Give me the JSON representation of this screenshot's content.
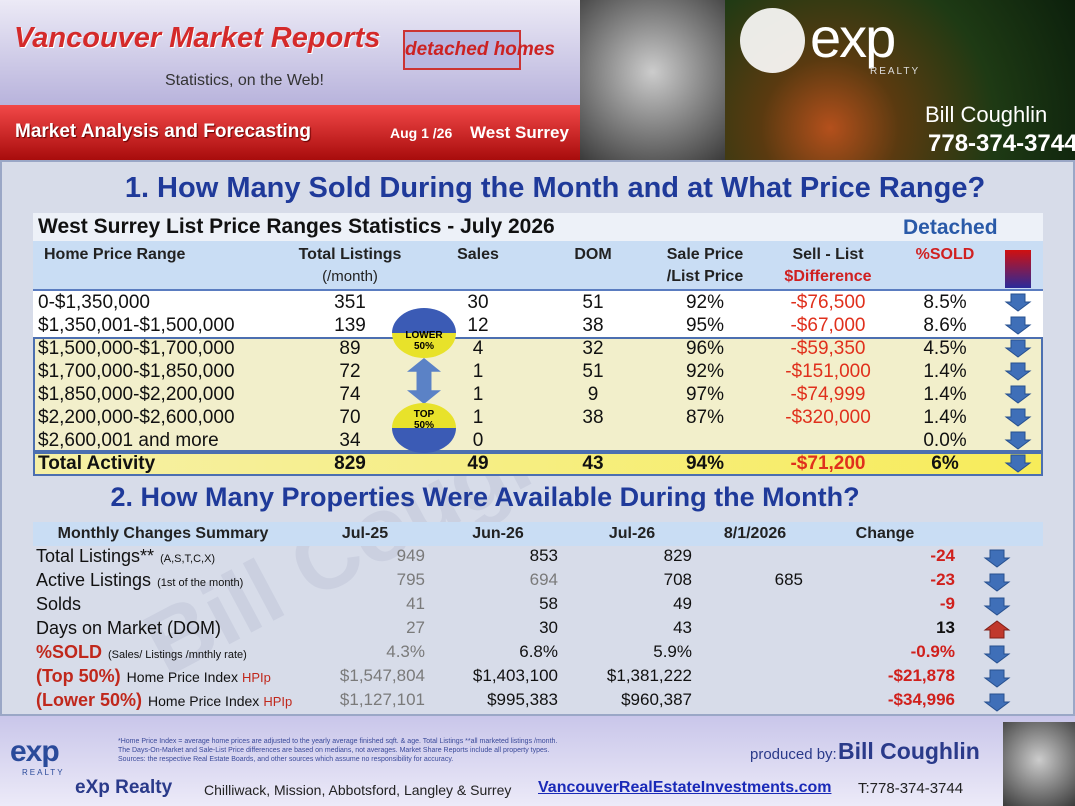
{
  "header": {
    "title": "Vancouver Market Reports",
    "subtitle": "Statistics, on the Web!",
    "badge": "detached homes",
    "section": "Market Analysis and Forecasting",
    "date": "Aug 1 /26",
    "area": "West Surrey",
    "logo": "exp",
    "logo_sub": "REALTY",
    "agent_name": "Bill Coughlin",
    "agent_phone": "778-374-3744"
  },
  "watermark": "Bill Coughlin",
  "section1": {
    "heading": "1. How Many Sold During the Month and at What Price Range?",
    "table_title": "West Surrey List Price Ranges Statistics - July  2026",
    "table_type": "Detached",
    "columns": [
      [
        "Home Price Range"
      ],
      [
        "Total  Listings",
        "(/month)"
      ],
      [
        "Sales"
      ],
      [
        "DOM"
      ],
      [
        "Sale Price",
        "/List Price"
      ],
      [
        "Sell - List",
        "$Difference"
      ],
      [
        "%SOLD"
      ]
    ],
    "rows": [
      [
        "0-$1,350,000",
        "351",
        "30",
        "51",
        "92%",
        "-$76,500",
        "8.5%"
      ],
      [
        "$1,350,001-$1,500,000",
        "139",
        "12",
        "38",
        "95%",
        "-$67,000",
        "8.6%"
      ],
      [
        "$1,500,000-$1,700,000",
        "89",
        "4",
        "32",
        "96%",
        "-$59,350",
        "4.5%"
      ],
      [
        "$1,700,000-$1,850,000",
        "72",
        "1",
        "51",
        "92%",
        "-$151,000",
        "1.4%"
      ],
      [
        "$1,850,000-$2,200,000",
        "74",
        "1",
        "9",
        "97%",
        "-$74,999",
        "1.4%"
      ],
      [
        "$2,200,000-$2,600,000",
        "70",
        "1",
        "38",
        "87%",
        "-$320,000",
        "1.4%"
      ],
      [
        "$2,600,001 and more",
        "34",
        "0",
        null,
        null,
        null,
        "0.0%"
      ]
    ],
    "total": [
      "Total Activity",
      "829",
      "49",
      "43",
      "94%",
      "-$71,200",
      "6%"
    ],
    "badge_lower": [
      "LOWER",
      "50%"
    ],
    "badge_top": [
      "TOP",
      "50%"
    ]
  },
  "section2": {
    "heading": "2. How Many Properties Were Available During the Month?",
    "columns": [
      "Monthly Changes Summary",
      "Jul-25",
      "Jun-26",
      "Jul-26",
      "8/1/2026",
      "Change"
    ],
    "rows": [
      {
        "label": "Total Listings**",
        "note": "(A,S,T,C,X)",
        "values": [
          "949",
          "853",
          "829"
        ],
        "change": "-24"
      },
      {
        "label": "Active Listings",
        "note": "(1st of the month)",
        "values": [
          "795",
          "694",
          "708"
        ],
        "current": "685",
        "change": "-23"
      },
      {
        "label": "Solds",
        "values": [
          "41",
          "58",
          "49"
        ],
        "change": "-9"
      },
      {
        "label": "Days on Market (DOM)",
        "values": [
          "27",
          "30",
          "43"
        ],
        "change": "13"
      },
      {
        "label": "%SOLD",
        "note": "(Sales/ Listings /mnthly rate)",
        "values": [
          "4.3%",
          "6.8%",
          "5.9%"
        ],
        "change": "-0.9%"
      },
      {
        "label": "(Top 50%)",
        "note": "Home Price Index",
        "suffix": "HPIp",
        "values": [
          "$1,547,804",
          "$1,403,100",
          "$1,381,222"
        ],
        "change": "-$21,878"
      },
      {
        "label": "(Lower 50%)",
        "note": "Home Price Index",
        "suffix": "HPIp",
        "values": [
          "$1,127,101",
          "$995,383",
          "$960,387"
        ],
        "change": "-$34,996"
      }
    ]
  },
  "footer": {
    "notes": [
      "*Home Price Index = average home prices are adjusted to the yearly average finished sqft. & age.  Total Listings **all marketed listings /month.",
      "The Days-On-Market and Sale-List Price differences are based on medians, not averages. Market Share Reports include all property types.",
      "Sources:  the respective Real Estate Boards, and other sources which assume no responsibility for accuracy."
    ],
    "produced_by": "produced by:",
    "name": "Bill Coughlin",
    "company": "eXp Realty",
    "areas": "Chilliwack, Mission, Abbotsford, Langley & Surrey",
    "website": "VancouverRealEstateInvestments.com",
    "phone": "T:778-374-3744",
    "logo": "exp",
    "logo_sub": "REALTY"
  }
}
